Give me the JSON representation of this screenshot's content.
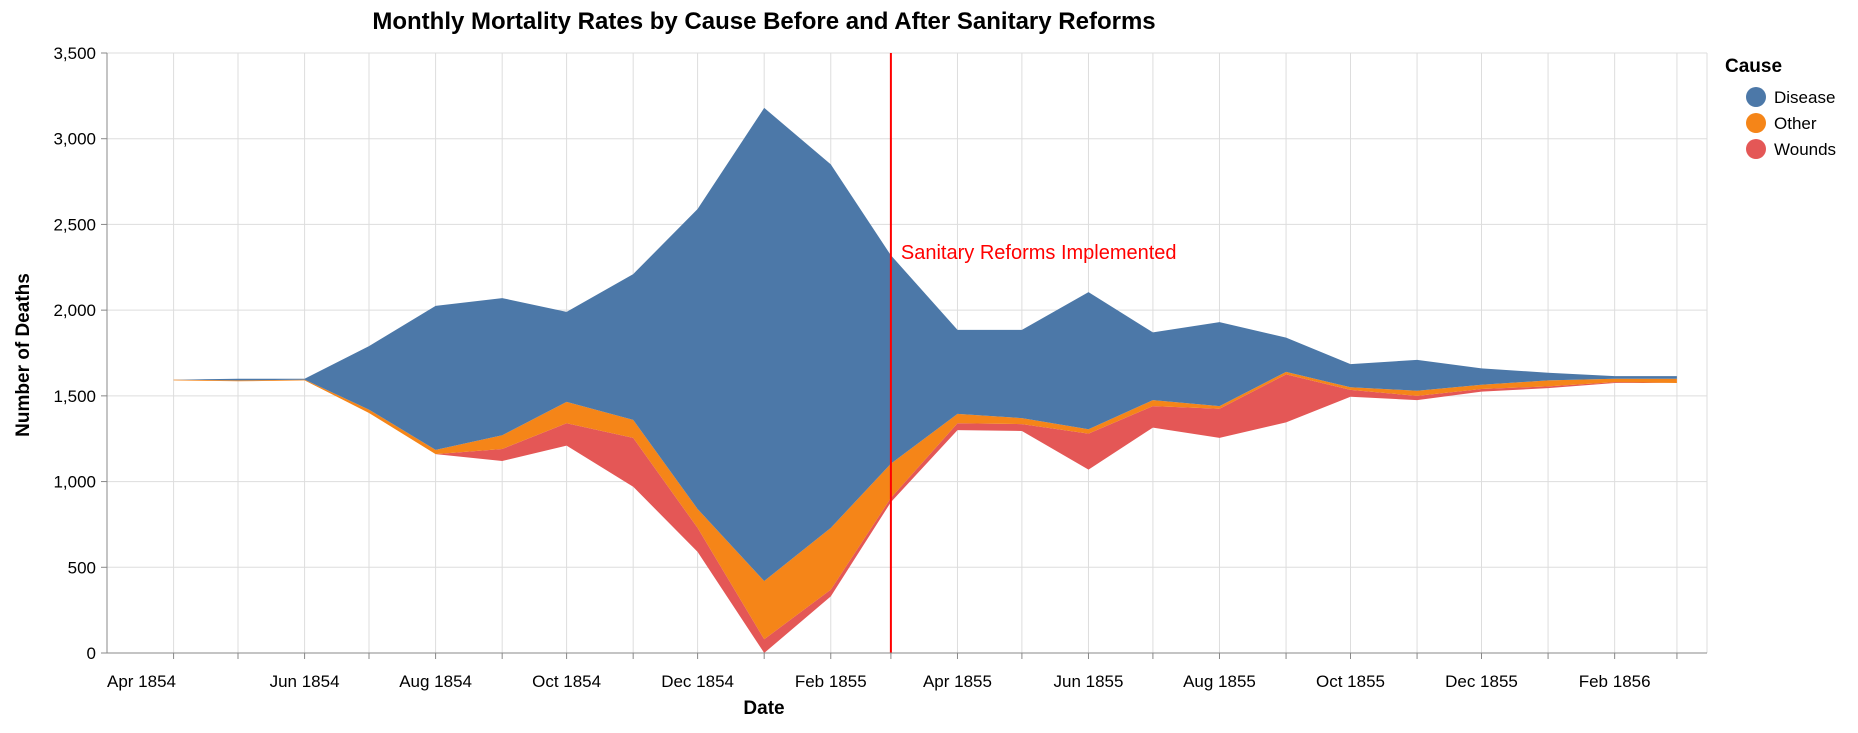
{
  "chart_data": {
    "type": "area",
    "subtype": "streamgraph",
    "title": "Monthly Mortality Rates by Cause Before and After Sanitary Reforms",
    "xlabel": "Date",
    "ylabel": "Number of Deaths",
    "x_ticks": [
      "Apr 1854",
      "Jun 1854",
      "Aug 1854",
      "Oct 1854",
      "Dec 1854",
      "Feb 1855",
      "Apr 1855",
      "Jun 1855",
      "Aug 1855",
      "Oct 1855",
      "Dec 1855",
      "Feb 1856"
    ],
    "y_ticks": [
      "0",
      "500",
      "1,000",
      "1,500",
      "2,000",
      "2,500",
      "3,000",
      "3,500"
    ],
    "ylim": [
      0,
      3500
    ],
    "xlim": [
      "1854-03-01",
      "1856-03-15"
    ],
    "grid": true,
    "legend": {
      "title": "Cause",
      "position": "right",
      "items": [
        {
          "name": "Disease",
          "color": "#4c78a8"
        },
        {
          "name": "Other",
          "color": "#f58518"
        },
        {
          "name": "Wounds",
          "color": "#e45756"
        }
      ]
    },
    "x": [
      "1854-04-01",
      "1854-05-01",
      "1854-06-01",
      "1854-07-01",
      "1854-08-01",
      "1854-09-01",
      "1854-10-01",
      "1854-11-01",
      "1854-12-01",
      "1855-01-01",
      "1855-02-01",
      "1855-03-01",
      "1855-04-01",
      "1855-05-01",
      "1855-06-01",
      "1855-07-01",
      "1855-08-01",
      "1855-09-01",
      "1855-10-01",
      "1855-11-01",
      "1855-12-01",
      "1856-01-01",
      "1856-02-01",
      "1856-03-01"
    ],
    "baseline": [
      1590,
      1585,
      1590,
      1400,
      1160,
      1120,
      1210,
      970,
      590,
      0,
      330,
      880,
      1300,
      1295,
      1070,
      1315,
      1255,
      1345,
      1495,
      1475,
      1525,
      1545,
      1575,
      1575
    ],
    "series": [
      {
        "name": "Wounds",
        "color": "#e45756",
        "values": [
          0,
          0,
          0,
          0,
          0,
          70,
          130,
          285,
          140,
          80,
          40,
          25,
          40,
          40,
          210,
          125,
          170,
          280,
          40,
          25,
          15,
          10,
          5,
          0
        ]
      },
      {
        "name": "Other",
        "color": "#f58518",
        "values": [
          5,
          5,
          5,
          20,
          25,
          80,
          125,
          105,
          110,
          340,
          360,
          200,
          55,
          35,
          25,
          35,
          15,
          15,
          15,
          30,
          25,
          35,
          20,
          25
        ]
      },
      {
        "name": "Disease",
        "color": "#4c78a8",
        "values": [
          0,
          10,
          5,
          370,
          840,
          800,
          525,
          850,
          1750,
          2760,
          2120,
          1215,
          490,
          515,
          800,
          395,
          490,
          200,
          135,
          180,
          95,
          45,
          15,
          15
        ]
      }
    ],
    "annotation": {
      "date": "1855-03-01",
      "label": "Sanitary Reforms Implemented",
      "color": "#ff0000"
    }
  }
}
